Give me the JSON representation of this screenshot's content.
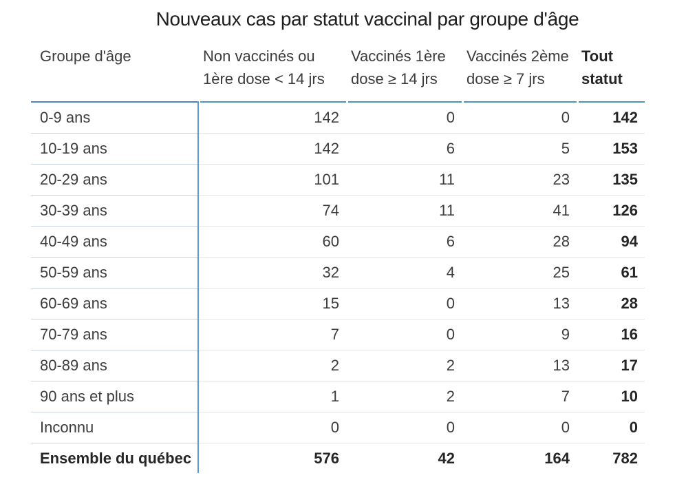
{
  "title": "Nouveaux cas par statut vaccinal par groupe d'âge",
  "colors": {
    "topbar_first_column": "#4a84c8",
    "topbar_value_columns": "#4e95ba",
    "row_header_divider": "#5b9bd5",
    "row_separator_gray": "#e3e5e7",
    "row_separator_blue": "#c4d4e8",
    "text": "#3d3d3d",
    "text_bold": "#252525"
  },
  "table": {
    "header": [
      {
        "lines": [
          "Groupe d'âge"
        ],
        "bold": false
      },
      {
        "lines": [
          "Non vaccinés ou",
          "1ère dose < 14 jrs"
        ],
        "bold": false
      },
      {
        "lines": [
          "Vaccinés 1ère",
          "dose ≥ 14 jrs"
        ],
        "bold": false
      },
      {
        "lines": [
          "Vaccinés 2ème",
          "dose ≥ 7 jrs"
        ],
        "bold": false
      },
      {
        "lines": [
          "Tout",
          "statut"
        ],
        "bold": true
      }
    ],
    "rows": [
      {
        "label": "0-9 ans",
        "values": [
          "142",
          "0",
          "0",
          "142"
        ],
        "bold": false
      },
      {
        "label": "10-19 ans",
        "values": [
          "142",
          "6",
          "5",
          "153"
        ],
        "bold": false
      },
      {
        "label": "20-29 ans",
        "values": [
          "101",
          "11",
          "23",
          "135"
        ],
        "bold": false
      },
      {
        "label": "30-39 ans",
        "values": [
          "74",
          "11",
          "41",
          "126"
        ],
        "bold": false
      },
      {
        "label": "40-49 ans",
        "values": [
          "60",
          "6",
          "28",
          "94"
        ],
        "bold": false
      },
      {
        "label": "50-59 ans",
        "values": [
          "32",
          "4",
          "25",
          "61"
        ],
        "bold": false
      },
      {
        "label": "60-69 ans",
        "values": [
          "15",
          "0",
          "13",
          "28"
        ],
        "bold": false
      },
      {
        "label": "70-79 ans",
        "values": [
          "7",
          "0",
          "9",
          "16"
        ],
        "bold": false
      },
      {
        "label": "80-89 ans",
        "values": [
          "2",
          "2",
          "13",
          "17"
        ],
        "bold": false
      },
      {
        "label": "90 ans et plus",
        "values": [
          "1",
          "2",
          "7",
          "10"
        ],
        "bold": false
      },
      {
        "label": "Inconnu",
        "values": [
          "0",
          "0",
          "0",
          "0"
        ],
        "bold": false
      },
      {
        "label": "Ensemble du québec",
        "values": [
          "576",
          "42",
          "164",
          "782"
        ],
        "bold": true
      }
    ]
  },
  "chart_data": {
    "type": "table",
    "title": "Nouveaux cas par statut vaccinal par groupe d'âge",
    "columns": [
      "Groupe d'âge",
      "Non vaccinés ou 1ère dose < 14 jrs",
      "Vaccinés 1ère dose ≥ 14 jrs",
      "Vaccinés 2ème dose ≥ 7 jrs",
      "Tout statut"
    ],
    "rows": [
      [
        "0-9 ans",
        142,
        0,
        0,
        142
      ],
      [
        "10-19 ans",
        142,
        6,
        5,
        153
      ],
      [
        "20-29 ans",
        101,
        11,
        23,
        135
      ],
      [
        "30-39 ans",
        74,
        11,
        41,
        126
      ],
      [
        "40-49 ans",
        60,
        6,
        28,
        94
      ],
      [
        "50-59 ans",
        32,
        4,
        25,
        61
      ],
      [
        "60-69 ans",
        15,
        0,
        13,
        28
      ],
      [
        "70-79 ans",
        7,
        0,
        9,
        16
      ],
      [
        "80-89 ans",
        2,
        2,
        13,
        17
      ],
      [
        "90 ans et plus",
        1,
        2,
        7,
        10
      ],
      [
        "Inconnu",
        0,
        0,
        0,
        0
      ],
      [
        "Ensemble du québec",
        576,
        42,
        164,
        782
      ]
    ],
    "notes": "Totals column and totals row rendered in bold"
  }
}
